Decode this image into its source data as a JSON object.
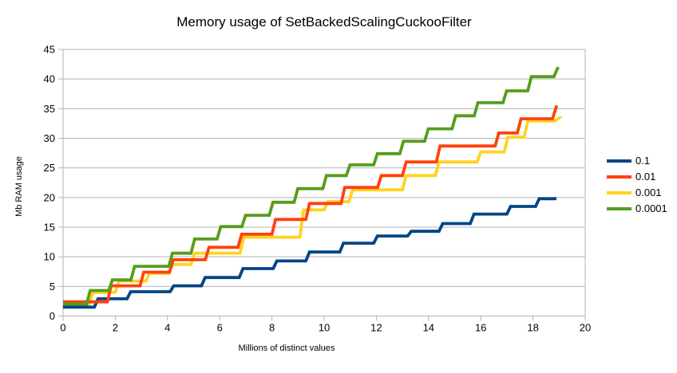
{
  "title": "Memory usage of SetBackedScalingCuckooFilter",
  "chart_data": {
    "type": "line",
    "line_style": "step",
    "title": "Memory usage of SetBackedScalingCuckooFilter",
    "xlabel": "Millions of distinct values",
    "ylabel": "Mb RAM usage",
    "xlim": [
      0,
      20
    ],
    "ylim": [
      0,
      45
    ],
    "x_ticks": [
      0,
      2,
      4,
      6,
      8,
      10,
      12,
      14,
      16,
      18,
      20
    ],
    "y_ticks": [
      0,
      5,
      10,
      15,
      20,
      25,
      30,
      35,
      40,
      45
    ],
    "grid": "horizontal",
    "gridline_color": "#b3b3b3",
    "axis_color": "#b3b3b3",
    "legend_position": "right",
    "series": [
      {
        "name": "0.1",
        "color": "#004586",
        "x_end": 18.9,
        "steps": [
          [
            0,
            1.5
          ],
          [
            1.2,
            2.9
          ],
          [
            2.45,
            4.1
          ],
          [
            4.1,
            5.1
          ],
          [
            5.3,
            6.5
          ],
          [
            6.75,
            8.0
          ],
          [
            8.05,
            9.3
          ],
          [
            9.3,
            10.8
          ],
          [
            10.6,
            12.3
          ],
          [
            11.9,
            13.5
          ],
          [
            13.2,
            14.3
          ],
          [
            14.4,
            15.6
          ],
          [
            15.6,
            17.2
          ],
          [
            17.0,
            18.5
          ],
          [
            18.1,
            19.8
          ]
        ]
      },
      {
        "name": "0.01",
        "color": "#ff420e",
        "x_end": 18.95,
        "steps": [
          [
            0,
            2.4
          ],
          [
            1.7,
            5.1
          ],
          [
            2.95,
            7.4
          ],
          [
            4.08,
            9.5
          ],
          [
            5.45,
            11.6
          ],
          [
            6.7,
            13.8
          ],
          [
            8.0,
            16.3
          ],
          [
            9.3,
            19.0
          ],
          [
            10.65,
            21.7
          ],
          [
            12.05,
            23.7
          ],
          [
            13.0,
            26.0
          ],
          [
            14.3,
            28.7
          ],
          [
            16.55,
            30.9
          ],
          [
            17.4,
            33.3
          ],
          [
            18.75,
            35.3
          ]
        ]
      },
      {
        "name": "0.001",
        "color": "#ffd320",
        "x_end": 18.95,
        "steps": [
          [
            0,
            2.0
          ],
          [
            1.0,
            4.0
          ],
          [
            2.0,
            5.9
          ],
          [
            3.17,
            7.2
          ],
          [
            4.05,
            8.7
          ],
          [
            4.9,
            10.6
          ],
          [
            6.78,
            13.3
          ],
          [
            9.07,
            17.9
          ],
          [
            10.0,
            19.3
          ],
          [
            10.95,
            21.3
          ],
          [
            13.0,
            23.7
          ],
          [
            14.26,
            26.0
          ],
          [
            15.86,
            27.7
          ],
          [
            16.9,
            30.2
          ],
          [
            17.66,
            32.9
          ],
          [
            18.85,
            33.4
          ]
        ]
      },
      {
        "name": "0.0001",
        "color": "#579d1c",
        "x_end": 19.0,
        "steps": [
          [
            0,
            2.0
          ],
          [
            0.9,
            4.3
          ],
          [
            1.75,
            6.1
          ],
          [
            2.6,
            8.4
          ],
          [
            4.05,
            10.6
          ],
          [
            4.9,
            13.0
          ],
          [
            5.9,
            15.1
          ],
          [
            6.85,
            17.0
          ],
          [
            7.9,
            19.2
          ],
          [
            8.85,
            21.5
          ],
          [
            9.95,
            23.7
          ],
          [
            10.85,
            25.5
          ],
          [
            11.9,
            27.4
          ],
          [
            12.9,
            29.5
          ],
          [
            13.85,
            31.6
          ],
          [
            14.9,
            33.8
          ],
          [
            15.75,
            36.0
          ],
          [
            16.85,
            38.0
          ],
          [
            17.8,
            40.4
          ],
          [
            18.8,
            41.8
          ]
        ]
      }
    ]
  }
}
